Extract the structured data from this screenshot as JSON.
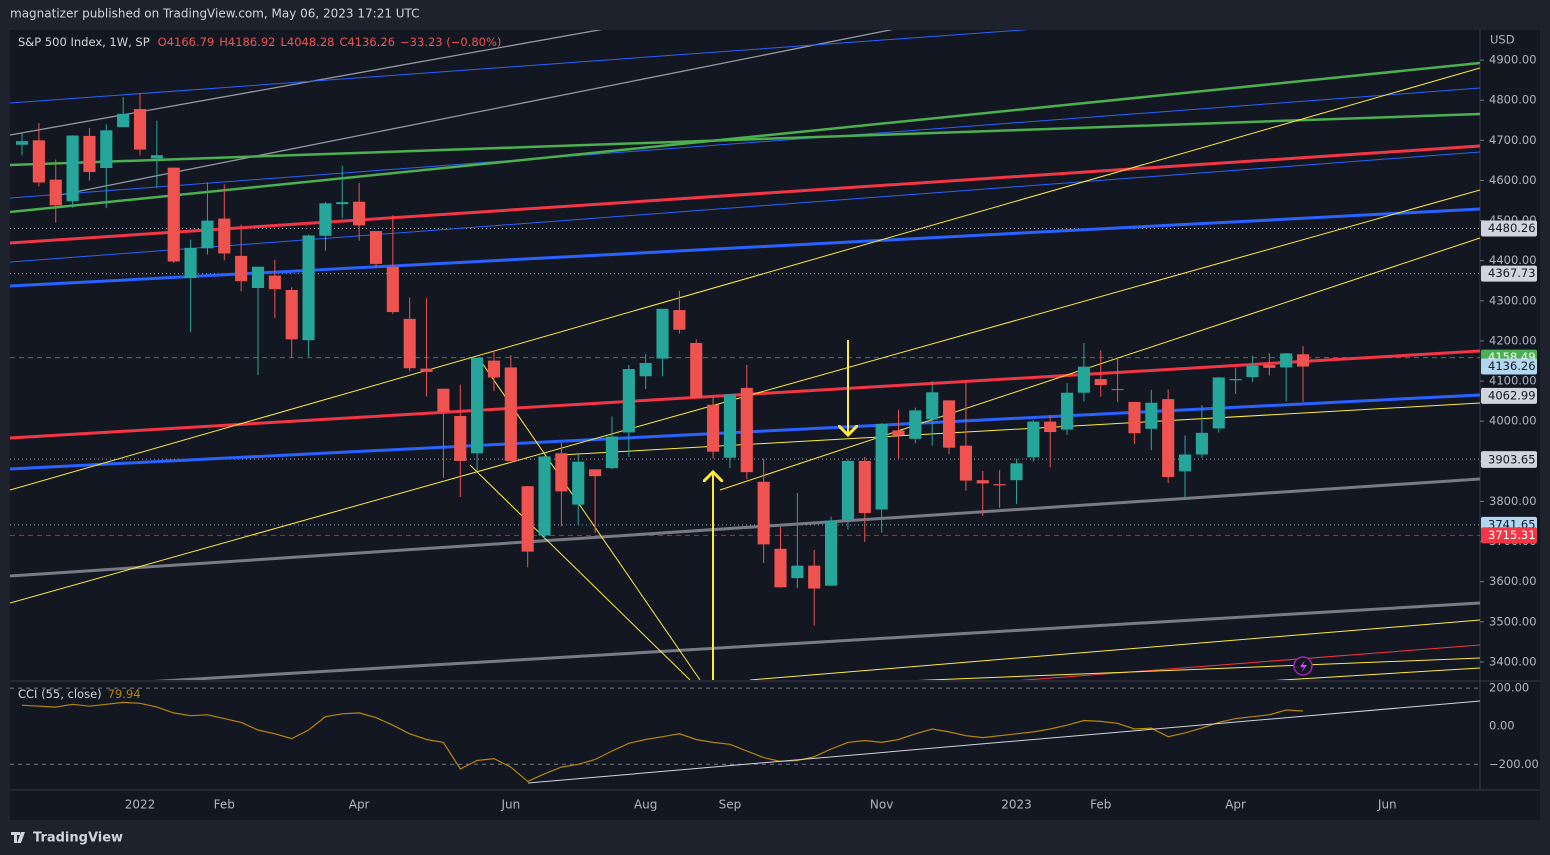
{
  "header": {
    "publisher": "magnatizer published on TradingView.com, May 06, 2023 17:21 UTC",
    "footer": "TradingView"
  },
  "chart_data": [
    {
      "type": "candlestick",
      "title": "S&P 500 Index, 1W, SP",
      "ohlc_legend": [
        "O4166.79",
        "H4186.92",
        "L4048.28",
        "C4136.26",
        "−33.23 (−0.80%)"
      ],
      "currency": "USD",
      "up_color": "#26a69a",
      "down_color": "#ef5350",
      "categories": [
        null,
        null,
        null,
        null,
        null,
        null,
        null,
        "2022",
        null,
        null,
        null,
        null,
        "Feb",
        null,
        null,
        null,
        null,
        null,
        null,
        null,
        "Apr",
        null,
        null,
        null,
        null,
        null,
        null,
        null,
        null,
        "Jun",
        null,
        null,
        null,
        null,
        null,
        null,
        null,
        "Aug",
        null,
        null,
        null,
        null,
        "Sep",
        null,
        null,
        null,
        null,
        null,
        null,
        null,
        null,
        "Nov",
        null,
        null,
        null,
        null,
        null,
        null,
        null,
        "2023",
        null,
        null,
        null,
        null,
        "Feb",
        null,
        null,
        null,
        null,
        null,
        null,
        null,
        "Apr",
        null,
        null,
        null,
        null,
        null,
        null,
        null,
        null,
        "Jun",
        null,
        null,
        null,
        null,
        null
      ],
      "open": [
        4689,
        4700,
        4602,
        4548,
        4711,
        4631,
        4733,
        4778,
        4655,
        4632,
        4357,
        4431,
        4505,
        4412,
        4332,
        4363,
        4327,
        4202,
        4462,
        4541,
        4547,
        4474,
        4385,
        4255,
        4131,
        4081,
        4013,
        3920,
        4151,
        4134,
        3838,
        3715,
        3920,
        3792,
        3880,
        3883,
        3972,
        4112,
        4156,
        4277,
        4195,
        4041,
        3909,
        4083,
        3849,
        3682,
        3609,
        3640,
        3590,
        3755,
        3901,
        3780,
        3977,
        3956,
        4005,
        4052,
        3939,
        3853,
        3843,
        3853,
        3910,
        3999,
        3979,
        4071,
        4105,
        4080,
        4048,
        3981,
        4055,
        3875,
        3917,
        3982,
        4102,
        4110,
        4140,
        4134,
        4166.79,
        null,
        null,
        null,
        null,
        null,
        null,
        null,
        null,
        null,
        null
      ],
      "high": [
        4717,
        4743,
        4652,
        4713,
        4731,
        4740,
        4808,
        4818,
        4749,
        4632,
        4453,
        4595,
        4590,
        4490,
        4385,
        4402,
        4334,
        4465,
        4546,
        4637,
        4594,
        4471,
        4513,
        4308,
        4307,
        4081,
        4091,
        4158,
        4177,
        4165,
        3838,
        3913,
        3946,
        3918,
        3880,
        4012,
        4140,
        4167,
        4280,
        4325,
        4204,
        4062,
        4068,
        4140,
        3907,
        3736,
        3821,
        3679,
        3762,
        3905,
        3911,
        3995,
        4028,
        4034,
        4100,
        4052,
        4101,
        3876,
        3878,
        3906,
        4003,
        4015,
        4095,
        4195,
        4176,
        4160,
        4048,
        4078,
        4079,
        3964,
        4040,
        4110,
        4134,
        4163,
        4170,
        4170,
        4186.92,
        null,
        null,
        null,
        null,
        null,
        null,
        null,
        null,
        null,
        null
      ],
      "low": [
        4663,
        4585,
        4495,
        4532,
        4600,
        4531,
        4733,
        4662,
        4582,
        4395,
        4222,
        4415,
        4401,
        4324,
        4115,
        4257,
        4157,
        4161,
        4425,
        4506,
        4450,
        4382,
        4267,
        4124,
        4062,
        3859,
        3811,
        3875,
        4075,
        3900,
        3636,
        3705,
        3738,
        3742,
        3722,
        3880,
        3911,
        4080,
        4112,
        4218,
        4057,
        3907,
        3883,
        3856,
        3647,
        3585,
        3584,
        3491,
        3590,
        3730,
        3699,
        3722,
        3907,
        3945,
        3939,
        3918,
        3827,
        3764,
        3784,
        3794,
        3899,
        3885,
        3966,
        4049,
        4061,
        4048,
        3943,
        3928,
        3846,
        3809,
        3909,
        3972,
        4068,
        4098,
        4114,
        4049,
        4048.28,
        null,
        null,
        null,
        null,
        null,
        null,
        null,
        null,
        null,
        null
      ],
      "close": [
        4698,
        4595,
        4538,
        4712,
        4621,
        4725,
        4766,
        4677,
        4663,
        4398,
        4432,
        4500,
        4418,
        4349,
        4385,
        4329,
        4204,
        4463,
        4543,
        4546,
        4488,
        4392,
        4272,
        4132,
        4123,
        4024,
        3901,
        4158,
        4109,
        3901,
        3675,
        3912,
        3825,
        3899,
        3863,
        3962,
        4130,
        4145,
        4280,
        4228,
        4058,
        3924,
        4067,
        3873,
        3693,
        3586,
        3640,
        3583,
        3752,
        3901,
        3771,
        3993,
        3965,
        4027,
        4072,
        3934,
        3852,
        3845,
        3840,
        3895,
        3999,
        3973,
        4071,
        4136,
        4090,
        4079,
        3970,
        4046,
        3861,
        3917,
        3971,
        4109,
        4105,
        4138,
        4133,
        4169,
        4136.26,
        null,
        null,
        null,
        null,
        null,
        null,
        null,
        null,
        null,
        null
      ],
      "ylim": [
        3355,
        4975
      ],
      "yticks": [
        {
          "value": 4900,
          "label": "4900.00"
        },
        {
          "value": 4800,
          "label": "4800.00"
        },
        {
          "value": 4700,
          "label": "4700.00"
        },
        {
          "value": 4600,
          "label": "4600.00"
        },
        {
          "value": 4500,
          "label": "4500.00"
        },
        {
          "value": 4400,
          "label": "4400.00"
        },
        {
          "value": 4300,
          "label": "4300.00"
        },
        {
          "value": 4200,
          "label": "4200.00"
        },
        {
          "value": 4100,
          "label": "4100.00"
        },
        {
          "value": 4000,
          "label": "4000.00"
        },
        {
          "value": 3900,
          "label": "3900.00"
        },
        {
          "value": 3800,
          "label": "3800.00"
        },
        {
          "value": 3700,
          "label": "3700.00"
        },
        {
          "value": 3600,
          "label": "3600.00"
        },
        {
          "value": 3500,
          "label": "3500.00"
        },
        {
          "value": 3400,
          "label": "3400.00"
        }
      ],
      "levels": [
        {
          "value": 4480.26,
          "color": "#d1d4dc",
          "text_color": "#131722",
          "line": "dotted"
        },
        {
          "value": 4367.73,
          "color": "#d1d4dc",
          "text_color": "#131722",
          "line": "dotted"
        },
        {
          "value": 4158.49,
          "color": "#4caf50",
          "text_color": "#ffffff",
          "line": "dashed"
        },
        {
          "value": 4136.26,
          "color": "#b2d7f0",
          "text_color": "#131722",
          "line": "none"
        },
        {
          "value": 4062.99,
          "color": "#d1d4dc",
          "text_color": "#131722",
          "line": "none"
        },
        {
          "value": 3905.42,
          "color": "#d1d4dc",
          "text_color": "#131722",
          "line": "dotted"
        },
        {
          "value": 3903.65,
          "color": "#d1d4dc",
          "text_color": "#131722",
          "line": "none"
        },
        {
          "value": 3741.65,
          "color": "#b2d7f0",
          "text_color": "#131722",
          "line": "dotted"
        },
        {
          "value": 3715.31,
          "color": "#f23645",
          "text_color": "#ffffff",
          "line": "dashed"
        }
      ]
    },
    {
      "type": "line",
      "title": "CCI (55, close)",
      "color": "#b8860b",
      "values": [
        110,
        105,
        100,
        115,
        105,
        115,
        125,
        120,
        100,
        70,
        55,
        60,
        40,
        20,
        -20,
        -40,
        -65,
        -20,
        50,
        65,
        70,
        45,
        5,
        -40,
        -70,
        -85,
        -225,
        -180,
        -170,
        -215,
        -290,
        -250,
        -215,
        -200,
        -175,
        -130,
        -90,
        -70,
        -55,
        -40,
        -70,
        -85,
        -95,
        -130,
        -165,
        -185,
        -180,
        -160,
        -120,
        -85,
        -75,
        -85,
        -70,
        -40,
        -15,
        -30,
        -50,
        -60,
        -50,
        -40,
        -30,
        -15,
        5,
        30,
        25,
        15,
        -15,
        -10,
        -55,
        -35,
        -10,
        20,
        40,
        50,
        60,
        85,
        79.94,
        null,
        null,
        null,
        null,
        null,
        null,
        null,
        null,
        null,
        null
      ],
      "ylim": [
        -335,
        232
      ],
      "yticks": [
        {
          "value": 200,
          "label": "200.00"
        },
        {
          "value": 0,
          "label": "0.00"
        },
        {
          "value": -200,
          "label": "−200.00"
        }
      ]
    }
  ]
}
